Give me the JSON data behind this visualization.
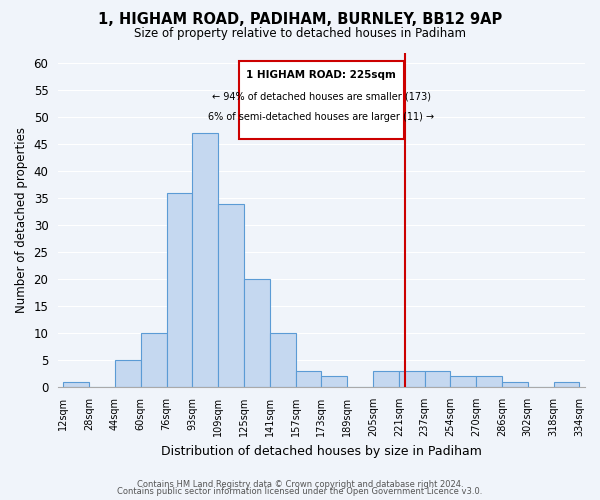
{
  "title": "1, HIGHAM ROAD, PADIHAM, BURNLEY, BB12 9AP",
  "subtitle": "Size of property relative to detached houses in Padiham",
  "xlabel": "Distribution of detached houses by size in Padiham",
  "ylabel": "Number of detached properties",
  "bin_labels": [
    "12sqm",
    "28sqm",
    "44sqm",
    "60sqm",
    "76sqm",
    "93sqm",
    "109sqm",
    "125sqm",
    "141sqm",
    "157sqm",
    "173sqm",
    "189sqm",
    "205sqm",
    "221sqm",
    "237sqm",
    "254sqm",
    "270sqm",
    "286sqm",
    "302sqm",
    "318sqm",
    "334sqm"
  ],
  "bar_values": [
    1,
    0,
    5,
    10,
    36,
    47,
    34,
    20,
    10,
    3,
    2,
    0,
    3,
    3,
    3,
    2,
    2,
    1,
    0,
    1
  ],
  "bar_color": "#c5d8f0",
  "bar_edge_color": "#5b9bd5",
  "vline_position": 13.25,
  "vline_color": "#cc0000",
  "annotation_title": "1 HIGHAM ROAD: 225sqm",
  "annotation_line1": "← 94% of detached houses are smaller (173)",
  "annotation_line2": "6% of semi-detached houses are larger (11) →",
  "annotation_box_color": "#ffffff",
  "annotation_box_edge": "#cc0000",
  "ylim": [
    0,
    62
  ],
  "yticks": [
    0,
    5,
    10,
    15,
    20,
    25,
    30,
    35,
    40,
    45,
    50,
    55,
    60
  ],
  "footer1": "Contains HM Land Registry data © Crown copyright and database right 2024.",
  "footer2": "Contains public sector information licensed under the Open Government Licence v3.0.",
  "bg_color": "#f0f4fa"
}
